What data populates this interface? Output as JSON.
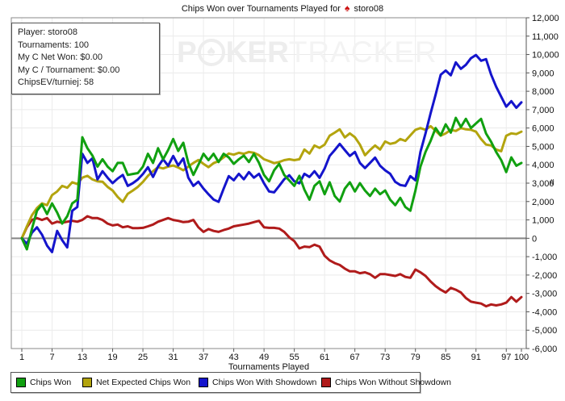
{
  "title": {
    "prefix": "Chips Won over Tournaments Played for",
    "suit": "♠",
    "player": "storo08"
  },
  "info_box": {
    "lines": [
      "Player: storo08",
      "Tournaments: 100",
      "My C Net Won: $0.00",
      "My C / Tournament: $0.00",
      "ChipsEV/turniej: 58"
    ]
  },
  "watermark": {
    "part1": "P",
    "chip_suit": "♠",
    "part2": "KER",
    "part3": "TRACKER"
  },
  "chart_data": {
    "type": "line",
    "title": "Chips Won over Tournaments Played for storo08",
    "xlabel": "Tournaments Played",
    "y_axis_unit": "#",
    "grid": true,
    "legend_position": "bottom",
    "x_start": 1,
    "x_end": 100,
    "x_ticks": [
      1,
      7,
      13,
      19,
      25,
      31,
      37,
      43,
      49,
      55,
      61,
      67,
      73,
      79,
      85,
      91,
      97,
      100
    ],
    "ylim": [
      -6000,
      12000
    ],
    "y_tick_step": 1000,
    "series": [
      {
        "name": "Chips Won",
        "color": "#10A010",
        "values": [
          0,
          -600,
          500,
          1500,
          1840,
          1320,
          1900,
          1400,
          800,
          1200,
          1900,
          2100,
          5500,
          4900,
          4500,
          3900,
          4300,
          3900,
          3650,
          4100,
          4100,
          3450,
          3500,
          3550,
          3900,
          4600,
          4100,
          4900,
          4300,
          4800,
          5400,
          4750,
          5200,
          4100,
          3450,
          4000,
          4600,
          4250,
          4600,
          4150,
          4600,
          4400,
          4050,
          4300,
          4500,
          4150,
          4600,
          4100,
          3450,
          3100,
          3700,
          4050,
          3450,
          3150,
          2850,
          3400,
          2650,
          2100,
          2850,
          3100,
          2400,
          3050,
          2300,
          2000,
          2700,
          3050,
          2550,
          3000,
          2600,
          2300,
          2700,
          2400,
          2600,
          2100,
          1800,
          2200,
          1700,
          1500,
          2600,
          3900,
          4700,
          5300,
          6000,
          5600,
          6200,
          5750,
          6550,
          6050,
          6500,
          6000,
          6250,
          6500,
          5700,
          5250,
          4700,
          4250,
          3600,
          4400,
          3950,
          4100
        ]
      },
      {
        "name": "Net Expected Chips Won",
        "color": "#B3A40E",
        "values": [
          0,
          650,
          1250,
          1650,
          1900,
          1800,
          2350,
          2550,
          2850,
          2750,
          3050,
          2950,
          3300,
          3400,
          3200,
          3100,
          3080,
          2800,
          2600,
          2250,
          1980,
          2420,
          2600,
          2800,
          3070,
          3400,
          3650,
          3870,
          3800,
          3900,
          3960,
          3850,
          3700,
          3900,
          4100,
          4260,
          4050,
          3870,
          4090,
          4200,
          4400,
          4610,
          4550,
          4650,
          4600,
          4700,
          4650,
          4520,
          4300,
          4200,
          4090,
          4150,
          4250,
          4300,
          4250,
          4300,
          4830,
          4610,
          5050,
          4920,
          5100,
          5580,
          5750,
          5930,
          5490,
          5710,
          5500,
          5100,
          4520,
          4800,
          5050,
          4830,
          5270,
          5140,
          5200,
          5400,
          5300,
          5600,
          5900,
          6000,
          5900,
          6100,
          5850,
          5580,
          5710,
          5900,
          5840,
          6000,
          5930,
          5900,
          5800,
          5400,
          5100,
          5050,
          4830,
          4740,
          5580,
          5710,
          5670,
          5800
        ]
      },
      {
        "name": "Chips Won With Showdown",
        "color": "#1414CC",
        "values": [
          0,
          -300,
          300,
          600,
          200,
          -400,
          -750,
          400,
          -100,
          -500,
          1500,
          1700,
          4600,
          4100,
          4350,
          3200,
          3650,
          3300,
          3000,
          3250,
          3450,
          2850,
          3000,
          3200,
          3500,
          3870,
          3340,
          3900,
          4300,
          3950,
          4480,
          3960,
          4350,
          3300,
          2850,
          3080,
          2700,
          2400,
          2110,
          1980,
          2700,
          3380,
          3160,
          3510,
          3210,
          3600,
          3300,
          3510,
          2990,
          2550,
          2500,
          2850,
          3210,
          3430,
          3100,
          2990,
          3510,
          3340,
          3650,
          3290,
          3800,
          4480,
          4800,
          5140,
          4800,
          4480,
          4700,
          4100,
          3820,
          4100,
          4390,
          3950,
          3700,
          3510,
          3070,
          2900,
          2850,
          3380,
          3160,
          4700,
          5710,
          6800,
          7810,
          8900,
          9130,
          8870,
          9570,
          9220,
          9440,
          9800,
          9970,
          9660,
          9750,
          8900,
          8250,
          7700,
          7160,
          7460,
          7100,
          7400
        ]
      },
      {
        "name": "Chips Won Without Showdown",
        "color": "#B01B1B",
        "values": [
          0,
          600,
          1000,
          1100,
          1000,
          1100,
          800,
          900,
          850,
          900,
          950,
          900,
          1000,
          1200,
          1100,
          1100,
          1000,
          800,
          700,
          750,
          600,
          650,
          550,
          550,
          570,
          650,
          750,
          900,
          1000,
          1100,
          1000,
          950,
          880,
          900,
          1000,
          600,
          350,
          500,
          400,
          350,
          450,
          530,
          650,
          700,
          750,
          800,
          880,
          950,
          600,
          570,
          570,
          530,
          350,
          50,
          -150,
          -550,
          -450,
          -480,
          -350,
          -450,
          -950,
          -1200,
          -1350,
          -1450,
          -1650,
          -1800,
          -1800,
          -1900,
          -1850,
          -1950,
          -2150,
          -1950,
          -1950,
          -2000,
          -2050,
          -1950,
          -2100,
          -2150,
          -1700,
          -1850,
          -2050,
          -2350,
          -2600,
          -2800,
          -2950,
          -2700,
          -2800,
          -2950,
          -3250,
          -3450,
          -3500,
          -3550,
          -3700,
          -3600,
          -3650,
          -3600,
          -3500,
          -3200,
          -3450,
          -3200
        ]
      }
    ]
  }
}
